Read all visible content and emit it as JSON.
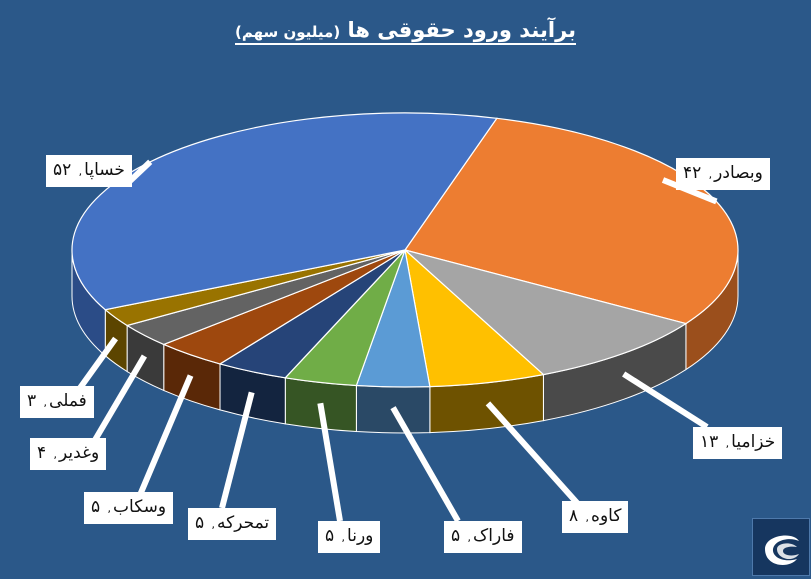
{
  "chart_data": {
    "type": "pie",
    "title": "برآیند ورود حقوقی ها",
    "subtitle": "(میلیون سهم)",
    "slices": [
      {
        "name": "وبصادر",
        "value": 42,
        "label_value": "۴۲",
        "color": "#ed7d31",
        "side": "#9b4f1c"
      },
      {
        "name": "خزامیا",
        "value": 13,
        "label_value": "۱۳",
        "color": "#a5a5a5",
        "side": "#4a4a4a"
      },
      {
        "name": "کاوه",
        "value": 8,
        "label_value": "۸",
        "color": "#ffc000",
        "side": "#6e5200"
      },
      {
        "name": "فاراک",
        "value": 5,
        "label_value": "۵",
        "color": "#5b9bd5",
        "side": "#2a4966"
      },
      {
        "name": "ورنا",
        "value": 5,
        "label_value": "۵",
        "color": "#70ad47",
        "side": "#365524"
      },
      {
        "name": "تمحرکه",
        "value": 5,
        "label_value": "۵",
        "color": "#264478",
        "side": "#13243f"
      },
      {
        "name": "وسکاب",
        "value": 5,
        "label_value": "۵",
        "color": "#9e480e",
        "side": "#5a2807"
      },
      {
        "name": "وغدیر",
        "value": 4,
        "label_value": "۴",
        "color": "#636363",
        "side": "#3a3a3a"
      },
      {
        "name": "فملی",
        "value": 3,
        "label_value": "۳",
        "color": "#997300",
        "side": "#5c4500"
      },
      {
        "name": "خساپا",
        "value": 52,
        "label_value": "۵۲",
        "color": "#4472c4",
        "side": "#2b4c87"
      }
    ],
    "legend": "none",
    "label_separator": ","
  }
}
